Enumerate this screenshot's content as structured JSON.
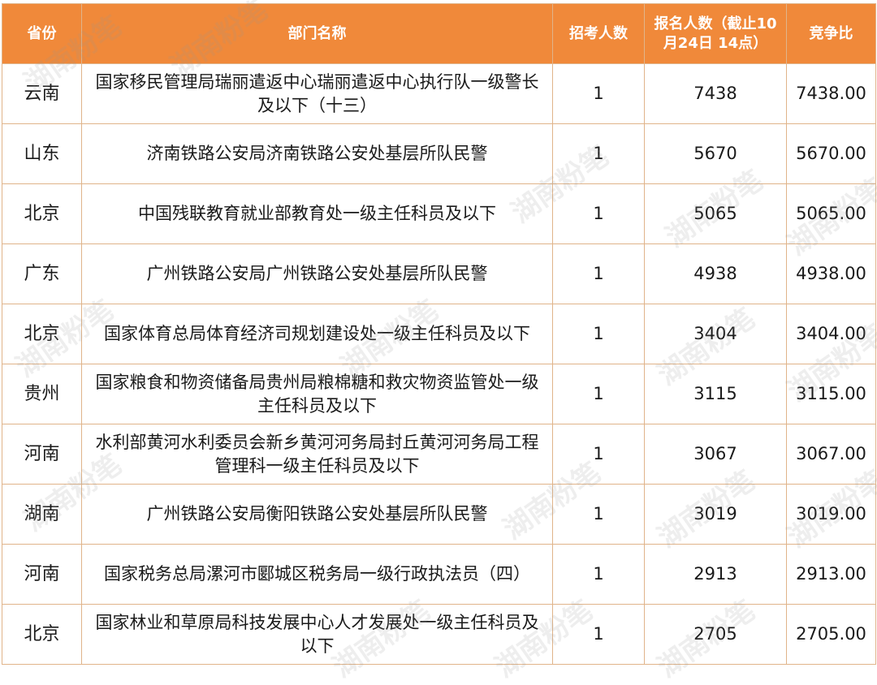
{
  "watermark": "湖南粉笔",
  "table": {
    "headers": [
      "省份",
      "部门名称",
      "招考人数",
      "报名人数（截止10月24日 14点）",
      "竞争比"
    ],
    "rows": [
      {
        "province": "云南",
        "department": "国家移民管理局瑞丽遣返中心瑞丽遣返中心执行队一级警长及以下（十三）",
        "recruit": "1",
        "applicants": "7438",
        "ratio": "7438.00"
      },
      {
        "province": "山东",
        "department": "济南铁路公安局济南铁路公安处基层所队民警",
        "recruit": "1",
        "applicants": "5670",
        "ratio": "5670.00"
      },
      {
        "province": "北京",
        "department": "中国残联教育就业部教育处一级主任科员及以下",
        "recruit": "1",
        "applicants": "5065",
        "ratio": "5065.00"
      },
      {
        "province": "广东",
        "department": "广州铁路公安局广州铁路公安处基层所队民警",
        "recruit": "1",
        "applicants": "4938",
        "ratio": "4938.00"
      },
      {
        "province": "北京",
        "department": "国家体育总局体育经济司规划建设处一级主任科员及以下",
        "recruit": "1",
        "applicants": "3404",
        "ratio": "3404.00"
      },
      {
        "province": "贵州",
        "department": "国家粮食和物资储备局贵州局粮棉糖和救灾物资监管处一级主任科员及以下",
        "recruit": "1",
        "applicants": "3115",
        "ratio": "3115.00"
      },
      {
        "province": "河南",
        "department": "水利部黄河水利委员会新乡黄河河务局封丘黄河河务局工程管理科一级主任科员及以下",
        "recruit": "1",
        "applicants": "3067",
        "ratio": "3067.00"
      },
      {
        "province": "湖南",
        "department": "广州铁路公安局衡阳铁路公安处基层所队民警",
        "recruit": "1",
        "applicants": "3019",
        "ratio": "3019.00"
      },
      {
        "province": "河南",
        "department": "国家税务总局漯河市郾城区税务局一级行政执法员（四）",
        "recruit": "1",
        "applicants": "2913",
        "ratio": "2913.00"
      },
      {
        "province": "北京",
        "department": "国家林业和草原局科技发展中心人才发展处一级主任科员及以下",
        "recruit": "1",
        "applicants": "2705",
        "ratio": "2705.00"
      }
    ]
  }
}
